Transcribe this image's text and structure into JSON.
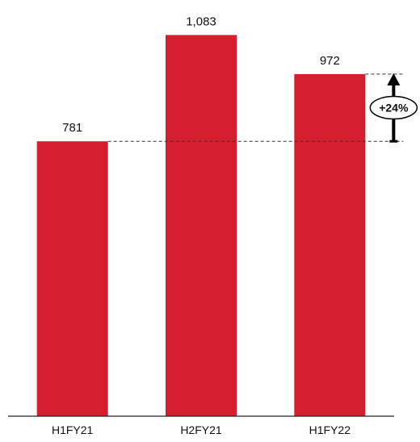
{
  "chart_data": {
    "type": "bar",
    "categories": [
      "H1FY21",
      "H2FY21",
      "H1FY22"
    ],
    "values": [
      781,
      1083,
      972
    ],
    "value_labels": [
      "781",
      "1,083",
      "972"
    ],
    "ylim": [
      0,
      1100
    ],
    "grid": false,
    "bar_color": "#d51f2e",
    "annotation": {
      "text": "+24%",
      "from_category": "H1FY21",
      "to_category": "H1FY22"
    }
  }
}
